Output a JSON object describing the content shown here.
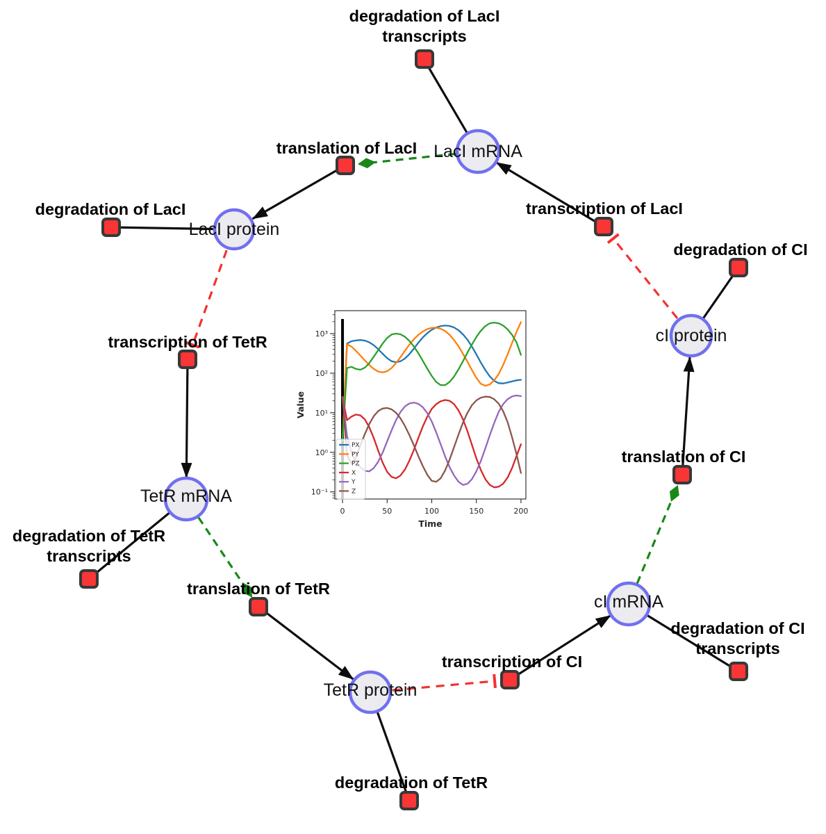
{
  "colors": {
    "species_fill": "#ebebf0",
    "species_stroke": "#7070f0",
    "reaction_fill": "#f93535",
    "reaction_stroke": "#383838",
    "edge_black": "#0d0d0d",
    "activation_green": "#188818",
    "inhibition_red": "#f53131"
  },
  "diagram": {
    "species": [
      {
        "id": "laci-mrna",
        "label": "LacI mRNA"
      },
      {
        "id": "laci-protein",
        "label": "LacI protein"
      },
      {
        "id": "tetr-mrna",
        "label": "TetR mRNA"
      },
      {
        "id": "tetr-protein",
        "label": "TetR protein"
      },
      {
        "id": "ci-mrna",
        "label": "cI mRNA"
      },
      {
        "id": "ci-protein",
        "label": "cI protein"
      }
    ],
    "reactions": [
      {
        "id": "degradation-laci-transcripts",
        "line1": "degradation of LacI",
        "line2": "transcripts"
      },
      {
        "id": "translation-laci",
        "line1": "translation of LacI"
      },
      {
        "id": "transcription-laci",
        "line1": "transcription of LacI"
      },
      {
        "id": "degradation-laci",
        "line1": "degradation of LacI"
      },
      {
        "id": "degradation-ci",
        "line1": "degradation of CI"
      },
      {
        "id": "transcription-tetr",
        "line1": "transcription of TetR"
      },
      {
        "id": "translation-ci",
        "line1": "translation of CI"
      },
      {
        "id": "degradation-tetr-transcripts",
        "line1": "degradation of TetR",
        "line2": "transcripts"
      },
      {
        "id": "translation-tetr",
        "line1": "translation of TetR"
      },
      {
        "id": "transcription-ci",
        "line1": "transcription of CI"
      },
      {
        "id": "degradation-ci-transcripts",
        "line1": "degradation of CI",
        "line2": "transcripts"
      },
      {
        "id": "degradation-tetr",
        "line1": "degradation of TetR"
      }
    ]
  },
  "chart_data": {
    "type": "line",
    "title": "",
    "xlabel": "Time",
    "ylabel": "Value",
    "xscale": "linear",
    "yscale": "log",
    "xlim": [
      -8.6,
      205.5
    ],
    "ylim": [
      0.066,
      3800
    ],
    "xticks": [
      0,
      50,
      100,
      150,
      200
    ],
    "yticks": [
      0.1,
      1,
      10,
      100,
      1000
    ],
    "ytick_labels": [
      "10⁻¹",
      "10⁰",
      "10¹",
      "10²",
      "10³"
    ],
    "legend_position": "lower left",
    "vline_x": 0,
    "x": [
      0,
      5,
      10,
      15,
      20,
      25,
      30,
      35,
      40,
      45,
      50,
      55,
      60,
      65,
      70,
      75,
      80,
      85,
      90,
      95,
      100,
      105,
      110,
      115,
      120,
      125,
      130,
      135,
      140,
      145,
      150,
      155,
      160,
      165,
      170,
      175,
      180,
      185,
      190,
      195,
      200
    ],
    "series": [
      {
        "name": "PX",
        "color": "#1f77b4",
        "values": [
          2,
          560,
          640,
          670,
          690,
          665,
          600,
          510,
          405,
          310,
          240,
          200,
          190,
          200,
          235,
          305,
          420,
          590,
          800,
          1030,
          1250,
          1430,
          1550,
          1600,
          1560,
          1430,
          1220,
          960,
          700,
          470,
          300,
          185,
          120,
          83,
          64,
          56,
          55,
          58,
          62,
          66,
          68
        ]
      },
      {
        "name": "PY",
        "color": "#ff7f0e",
        "values": [
          2,
          540,
          470,
          370,
          280,
          210,
          160,
          128,
          110,
          105,
          112,
          135,
          180,
          255,
          370,
          530,
          720,
          930,
          1130,
          1300,
          1400,
          1410,
          1330,
          1160,
          930,
          690,
          480,
          310,
          195,
          120,
          76,
          54,
          48,
          52,
          66,
          95,
          160,
          300,
          580,
          1100,
          1950
        ]
      },
      {
        "name": "PZ",
        "color": "#2ca02c",
        "values": [
          2,
          135,
          145,
          128,
          122,
          138,
          180,
          260,
          380,
          560,
          780,
          950,
          1000,
          960,
          830,
          650,
          470,
          320,
          205,
          130,
          85,
          60,
          50,
          50,
          60,
          82,
          125,
          200,
          330,
          530,
          820,
          1180,
          1550,
          1820,
          1900,
          1820,
          1600,
          1280,
          930,
          600,
          290
        ]
      },
      {
        "name": "X",
        "color": "#d62728",
        "values": [
          25,
          6.5,
          8,
          9,
          8.6,
          6.8,
          4.3,
          2.3,
          1.1,
          0.55,
          0.32,
          0.24,
          0.22,
          0.26,
          0.37,
          0.62,
          1.15,
          2.3,
          4.5,
          8,
          12.5,
          16.5,
          19.5,
          21,
          20,
          16.5,
          11.5,
          6.8,
          3.4,
          1.55,
          0.7,
          0.36,
          0.21,
          0.15,
          0.13,
          0.135,
          0.16,
          0.23,
          0.4,
          0.8,
          1.6
        ]
      },
      {
        "name": "Y",
        "color": "#9467bd",
        "values": [
          25,
          2.6,
          1.0,
          0.58,
          0.42,
          0.34,
          0.33,
          0.4,
          0.58,
          0.98,
          1.9,
          3.6,
          6.5,
          10.5,
          14.5,
          17.2,
          18,
          16.8,
          13.8,
          9.8,
          6,
          3.2,
          1.6,
          0.78,
          0.42,
          0.26,
          0.18,
          0.15,
          0.16,
          0.21,
          0.33,
          0.6,
          1.25,
          2.7,
          5.5,
          10.5,
          16.5,
          22,
          25.8,
          27.3,
          26.3
        ]
      },
      {
        "name": "Z",
        "color": "#8c564b",
        "values": [
          25,
          0.85,
          0.52,
          0.75,
          1.5,
          2.9,
          5.2,
          8.2,
          11,
          12.8,
          13.2,
          12.2,
          10,
          7.2,
          4.6,
          2.7,
          1.5,
          0.8,
          0.45,
          0.27,
          0.19,
          0.18,
          0.22,
          0.35,
          0.65,
          1.35,
          2.8,
          5.6,
          10,
          15.5,
          20.5,
          24,
          25.5,
          25,
          22,
          17,
          11,
          5.8,
          2.4,
          0.9,
          0.3
        ]
      }
    ]
  }
}
